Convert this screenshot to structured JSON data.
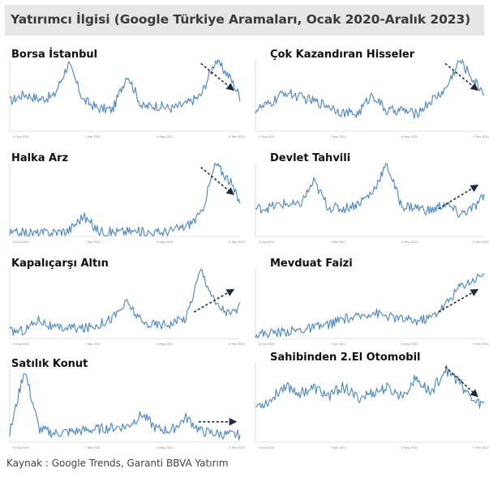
{
  "title": "Yatırımcı İlgisi (Google Türkiye Aramaları, Ocak 2020-Aralık 2023)",
  "source": "Kaynak : Google Trends, Garanti BBVA Yatırım",
  "colors": {
    "line": "#4a86c5",
    "arrow": "#1f2a38",
    "title_bg": "#e6e6e6",
    "axis": "#c8c8c8"
  },
  "chart_data": [
    {
      "type": "line",
      "title": "Borsa İstanbul",
      "trend_arrow": "down",
      "xlim": [
        "2020-01",
        "2023-12"
      ],
      "ylim": [
        0,
        100
      ],
      "grid": false,
      "x_ticks": [
        "5 Oca 2020",
        "7 Mar 2021",
        "8 May 2022",
        "9 Tem 2023"
      ],
      "x": [
        "2020-01",
        "2020-04",
        "2020-07",
        "2020-10",
        "2021-01",
        "2021-04",
        "2021-07",
        "2021-10",
        "2022-01",
        "2022-04",
        "2022-07",
        "2022-10",
        "2023-01",
        "2023-04",
        "2023-07",
        "2023-10",
        "2023-12"
      ],
      "series": [
        {
          "values": [
            42,
            52,
            45,
            49,
            95,
            44,
            32,
            30,
            80,
            34,
            36,
            32,
            38,
            50,
            100,
            75,
            48
          ]
        }
      ]
    },
    {
      "type": "line",
      "title": "Çok Kazandıran Hisseler",
      "trend_arrow": "down",
      "xlim": [
        "2020-01",
        "2023-12"
      ],
      "ylim": [
        0,
        100
      ],
      "grid": false,
      "x_ticks": [
        "5 Oca 2020",
        "7 Mar 2021",
        "8 May 2022",
        "9 Tem 2023"
      ],
      "x": [
        "2020-01",
        "2020-04",
        "2020-07",
        "2020-10",
        "2021-01",
        "2021-04",
        "2021-07",
        "2021-10",
        "2022-01",
        "2022-04",
        "2022-07",
        "2022-10",
        "2023-01",
        "2023-04",
        "2023-07",
        "2023-10",
        "2023-12"
      ],
      "series": [
        {
          "values": [
            30,
            38,
            55,
            48,
            42,
            36,
            26,
            24,
            52,
            28,
            30,
            24,
            42,
            58,
            100,
            70,
            55
          ]
        }
      ]
    },
    {
      "type": "line",
      "title": "Halka Arz",
      "trend_arrow": "down",
      "xlim": [
        "2020-01",
        "2023-12"
      ],
      "ylim": [
        0,
        100
      ],
      "grid": false,
      "x_ticks": [
        "5 Oca 2020",
        "7 Mar 2021",
        "8 May 2022",
        "9 Tem 2023"
      ],
      "x": [
        "2020-01",
        "2020-04",
        "2020-07",
        "2020-10",
        "2021-01",
        "2021-04",
        "2021-07",
        "2021-10",
        "2022-01",
        "2022-04",
        "2022-07",
        "2022-10",
        "2023-01",
        "2023-04",
        "2023-07",
        "2023-10",
        "2023-12"
      ],
      "series": [
        {
          "values": [
            4,
            5,
            4,
            6,
            8,
            28,
            8,
            6,
            7,
            6,
            5,
            8,
            14,
            30,
            100,
            75,
            45
          ]
        }
      ]
    },
    {
      "type": "line",
      "title": "Devlet Tahvili",
      "trend_arrow": "up",
      "xlim": [
        "2020-01",
        "2023-12"
      ],
      "ylim": [
        0,
        100
      ],
      "grid": false,
      "x_ticks": [
        "5 Oca 2020",
        "7 Mar 2021",
        "8 May 2022",
        "9 Tem 2023"
      ],
      "x": [
        "2020-01",
        "2020-04",
        "2020-07",
        "2020-10",
        "2021-01",
        "2021-04",
        "2021-07",
        "2021-10",
        "2022-01",
        "2022-04",
        "2022-07",
        "2022-10",
        "2023-01",
        "2023-04",
        "2023-07",
        "2023-10",
        "2023-12"
      ],
      "series": [
        {
          "values": [
            38,
            40,
            45,
            42,
            75,
            40,
            38,
            45,
            60,
            100,
            42,
            40,
            35,
            45,
            30,
            40,
            55
          ]
        }
      ]
    },
    {
      "type": "line",
      "title": "Kapalıçarşı Altın",
      "trend_arrow": "up",
      "xlim": [
        "2020-01",
        "2023-12"
      ],
      "ylim": [
        0,
        100
      ],
      "grid": false,
      "x_ticks": [
        "5 Oca 2020",
        "7 Mar 2021",
        "8 May 2022",
        "9 Tem 2023"
      ],
      "x": [
        "2020-01",
        "2020-04",
        "2020-07",
        "2020-10",
        "2021-01",
        "2021-04",
        "2021-07",
        "2021-10",
        "2022-01",
        "2022-04",
        "2022-07",
        "2022-10",
        "2023-01",
        "2023-04",
        "2023-07",
        "2023-10",
        "2023-12"
      ],
      "series": [
        {
          "values": [
            10,
            12,
            28,
            14,
            16,
            14,
            20,
            30,
            52,
            22,
            20,
            22,
            30,
            100,
            50,
            35,
            45
          ]
        }
      ]
    },
    {
      "type": "line",
      "title": "Mevduat Faizi",
      "trend_arrow": "up",
      "xlim": [
        "2020-01",
        "2023-12"
      ],
      "ylim": [
        0,
        100
      ],
      "grid": false,
      "x_ticks": [
        "5 Oca 2020",
        "7 Mar 2021",
        "8 May 2022",
        "9 Tem 2023"
      ],
      "x": [
        "2020-01",
        "2020-04",
        "2020-07",
        "2020-10",
        "2021-01",
        "2021-04",
        "2021-07",
        "2021-10",
        "2022-01",
        "2022-04",
        "2022-07",
        "2022-10",
        "2023-01",
        "2023-04",
        "2023-07",
        "2023-10",
        "2023-12"
      ],
      "series": [
        {
          "values": [
            6,
            8,
            10,
            12,
            15,
            20,
            28,
            30,
            38,
            32,
            28,
            25,
            30,
            48,
            75,
            85,
            95
          ]
        }
      ]
    },
    {
      "type": "line",
      "title": "Satılık Konut",
      "trend_arrow": "flat",
      "xlim": [
        "2020-01",
        "2023-12"
      ],
      "ylim": [
        0,
        100
      ],
      "grid": false,
      "x_ticks": [
        "5 Oca 2020",
        "7 Mar 2021",
        "8 May 2022",
        "9 Tem 2023"
      ],
      "x": [
        "2020-01",
        "2020-04",
        "2020-07",
        "2020-10",
        "2021-01",
        "2021-04",
        "2021-07",
        "2021-10",
        "2022-01",
        "2022-04",
        "2022-07",
        "2022-10",
        "2023-01",
        "2023-04",
        "2023-07",
        "2023-10",
        "2023-12"
      ],
      "series": [
        {
          "values": [
            12,
            100,
            18,
            12,
            14,
            16,
            18,
            20,
            22,
            38,
            18,
            16,
            34,
            15,
            12,
            10,
            10
          ]
        }
      ]
    },
    {
      "type": "line",
      "title": "Sahibinden 2.El Otomobil",
      "trend_arrow": "down",
      "xlim": [
        "2020-01",
        "2023-12"
      ],
      "ylim": [
        0,
        100
      ],
      "grid": false,
      "x_ticks": [
        "5 Oca 2020",
        "7 Mar 2021",
        "8 May 2022",
        "9 Tem 2023"
      ],
      "x": [
        "2020-01",
        "2020-04",
        "2020-07",
        "2020-10",
        "2021-01",
        "2021-04",
        "2021-07",
        "2021-10",
        "2022-01",
        "2022-04",
        "2022-07",
        "2022-10",
        "2023-01",
        "2023-04",
        "2023-07",
        "2023-10",
        "2023-12"
      ],
      "series": [
        {
          "values": [
            45,
            52,
            72,
            62,
            68,
            58,
            70,
            55,
            62,
            68,
            58,
            80,
            62,
            92,
            75,
            50,
            48
          ]
        }
      ]
    }
  ]
}
